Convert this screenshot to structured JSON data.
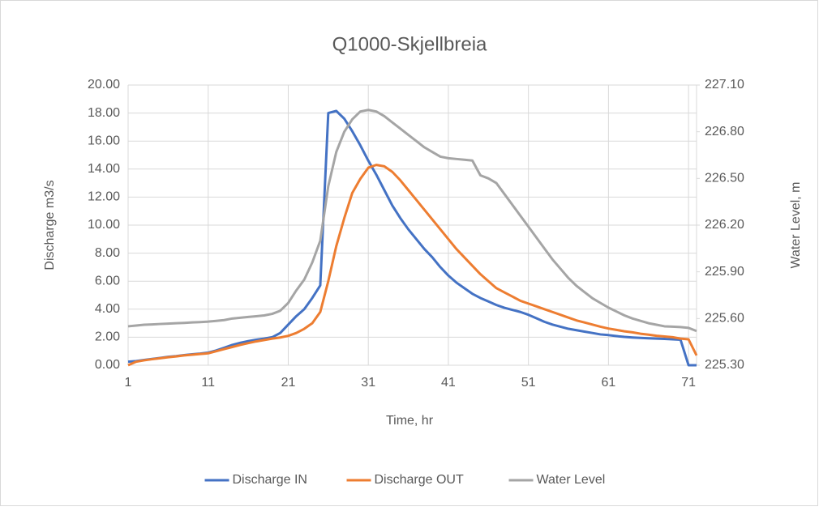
{
  "chart_data": {
    "type": "line",
    "title": "Q1000-Skjellbreia",
    "x_label": "Time, hr",
    "y_label": "Discharge m3/s",
    "y2_label": "Water Level, m",
    "x": [
      1,
      2,
      3,
      4,
      5,
      6,
      7,
      8,
      9,
      10,
      11,
      12,
      13,
      14,
      15,
      16,
      17,
      18,
      19,
      20,
      21,
      22,
      23,
      24,
      25,
      26,
      27,
      28,
      29,
      30,
      31,
      32,
      33,
      34,
      35,
      36,
      37,
      38,
      39,
      40,
      41,
      42,
      43,
      44,
      45,
      46,
      47,
      48,
      49,
      50,
      51,
      52,
      53,
      54,
      55,
      56,
      57,
      58,
      59,
      60,
      61,
      62,
      63,
      64,
      65,
      66,
      67,
      68,
      69,
      70,
      71,
      72
    ],
    "xlim": [
      1,
      72
    ],
    "xticks": [
      1,
      11,
      21,
      31,
      41,
      51,
      61,
      71
    ],
    "ylim": [
      0,
      20
    ],
    "yticks": [
      {
        "value": 0,
        "label": "0.00"
      },
      {
        "value": 2,
        "label": "2.00"
      },
      {
        "value": 4,
        "label": "4.00"
      },
      {
        "value": 6,
        "label": "6.00"
      },
      {
        "value": 8,
        "label": "8.00"
      },
      {
        "value": 10,
        "label": "10.00"
      },
      {
        "value": 12,
        "label": "12.00"
      },
      {
        "value": 14,
        "label": "14.00"
      },
      {
        "value": 16,
        "label": "16.00"
      },
      {
        "value": 18,
        "label": "18.00"
      },
      {
        "value": 20,
        "label": "20.00"
      }
    ],
    "y2lim": [
      225.3,
      227.1
    ],
    "y2ticks": [
      {
        "value": 225.3,
        "label": "225.30"
      },
      {
        "value": 225.6,
        "label": "225.60"
      },
      {
        "value": 225.9,
        "label": "225.90"
      },
      {
        "value": 226.2,
        "label": "226.20"
      },
      {
        "value": 226.5,
        "label": "226.50"
      },
      {
        "value": 226.8,
        "label": "226.80"
      },
      {
        "value": 227.1,
        "label": "227.10"
      }
    ],
    "grid": true,
    "legend": "bottom",
    "series": [
      {
        "name": "Discharge IN",
        "color": "#4472c4",
        "values": [
          0.25,
          0.3,
          0.38,
          0.45,
          0.52,
          0.6,
          0.65,
          0.72,
          0.78,
          0.83,
          0.9,
          1.05,
          1.25,
          1.45,
          1.6,
          1.72,
          1.82,
          1.9,
          2.0,
          2.3,
          2.9,
          3.5,
          4.0,
          4.8,
          5.7,
          18.0,
          18.15,
          17.6,
          16.7,
          15.7,
          14.6,
          13.6,
          12.5,
          11.4,
          10.5,
          9.7,
          9.0,
          8.3,
          7.7,
          7.0,
          6.4,
          5.9,
          5.5,
          5.1,
          4.8,
          4.55,
          4.3,
          4.1,
          3.95,
          3.8,
          3.6,
          3.35,
          3.1,
          2.9,
          2.75,
          2.6,
          2.5,
          2.4,
          2.3,
          2.2,
          2.15,
          2.08,
          2.02,
          1.98,
          1.95,
          1.92,
          1.9,
          1.88,
          1.85,
          1.82,
          0,
          0
        ]
      },
      {
        "name": "Discharge OUT",
        "color": "#ed7d31",
        "values": [
          0.0,
          0.25,
          0.35,
          0.43,
          0.5,
          0.57,
          0.63,
          0.7,
          0.75,
          0.8,
          0.85,
          1.0,
          1.15,
          1.3,
          1.45,
          1.58,
          1.7,
          1.8,
          1.9,
          1.98,
          2.1,
          2.3,
          2.6,
          3.0,
          3.8,
          6.0,
          8.5,
          10.5,
          12.3,
          13.3,
          14.1,
          14.3,
          14.2,
          13.8,
          13.2,
          12.5,
          11.8,
          11.1,
          10.4,
          9.7,
          9.0,
          8.3,
          7.7,
          7.1,
          6.5,
          6.0,
          5.5,
          5.2,
          4.9,
          4.6,
          4.4,
          4.2,
          4.0,
          3.8,
          3.6,
          3.4,
          3.2,
          3.05,
          2.9,
          2.75,
          2.62,
          2.52,
          2.42,
          2.35,
          2.25,
          2.18,
          2.1,
          2.05,
          2.0,
          1.9,
          1.85,
          0.7
        ]
      },
      {
        "name": "Water Level",
        "color": "#a5a5a5",
        "axis": "y2",
        "values": [
          225.55,
          225.555,
          225.56,
          225.562,
          225.565,
          225.567,
          225.57,
          225.572,
          225.575,
          225.577,
          225.58,
          225.585,
          225.59,
          225.6,
          225.605,
          225.61,
          225.615,
          225.62,
          225.63,
          225.65,
          225.7,
          225.78,
          225.85,
          225.96,
          226.1,
          226.45,
          226.67,
          226.8,
          226.88,
          226.93,
          226.94,
          226.93,
          226.9,
          226.86,
          226.82,
          226.78,
          226.74,
          226.7,
          226.67,
          226.64,
          226.63,
          226.625,
          226.62,
          226.615,
          226.52,
          226.5,
          226.47,
          226.4,
          226.33,
          226.26,
          226.19,
          226.12,
          226.05,
          225.98,
          225.92,
          225.86,
          225.81,
          225.77,
          225.73,
          225.7,
          225.67,
          225.645,
          225.62,
          225.6,
          225.585,
          225.57,
          225.56,
          225.55,
          225.548,
          225.545,
          225.54,
          225.52
        ]
      }
    ]
  }
}
